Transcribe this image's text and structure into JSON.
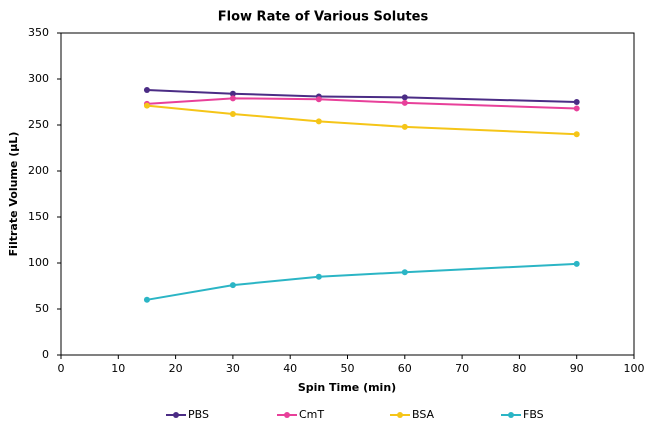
{
  "chart_data": {
    "type": "line",
    "title": "Flow Rate of Various Solutes",
    "x_label": "Spin Time (min)",
    "y_label": "Filtrate Volume (µL)",
    "x": [
      15,
      30,
      45,
      60,
      90
    ],
    "series": [
      {
        "name": "PBS",
        "color": "#4b2c85",
        "values": [
          288,
          284,
          281,
          280,
          275
        ]
      },
      {
        "name": "CmT",
        "color": "#e8409a",
        "values": [
          273,
          279,
          278,
          274,
          268
        ]
      },
      {
        "name": "BSA",
        "color": "#f5c518",
        "values": [
          271,
          262,
          254,
          248,
          240
        ]
      },
      {
        "name": "FBS",
        "color": "#2bb5c5",
        "values": [
          60,
          76,
          85,
          90,
          99
        ]
      }
    ],
    "xlim": [
      0,
      100
    ],
    "xticks": [
      0,
      10,
      20,
      30,
      40,
      50,
      60,
      70,
      80,
      90,
      100
    ],
    "ylim": [
      0,
      350
    ],
    "yticks": [
      0,
      50,
      100,
      150,
      200,
      250,
      300,
      350
    ],
    "grid": false,
    "legend": "bottom"
  }
}
